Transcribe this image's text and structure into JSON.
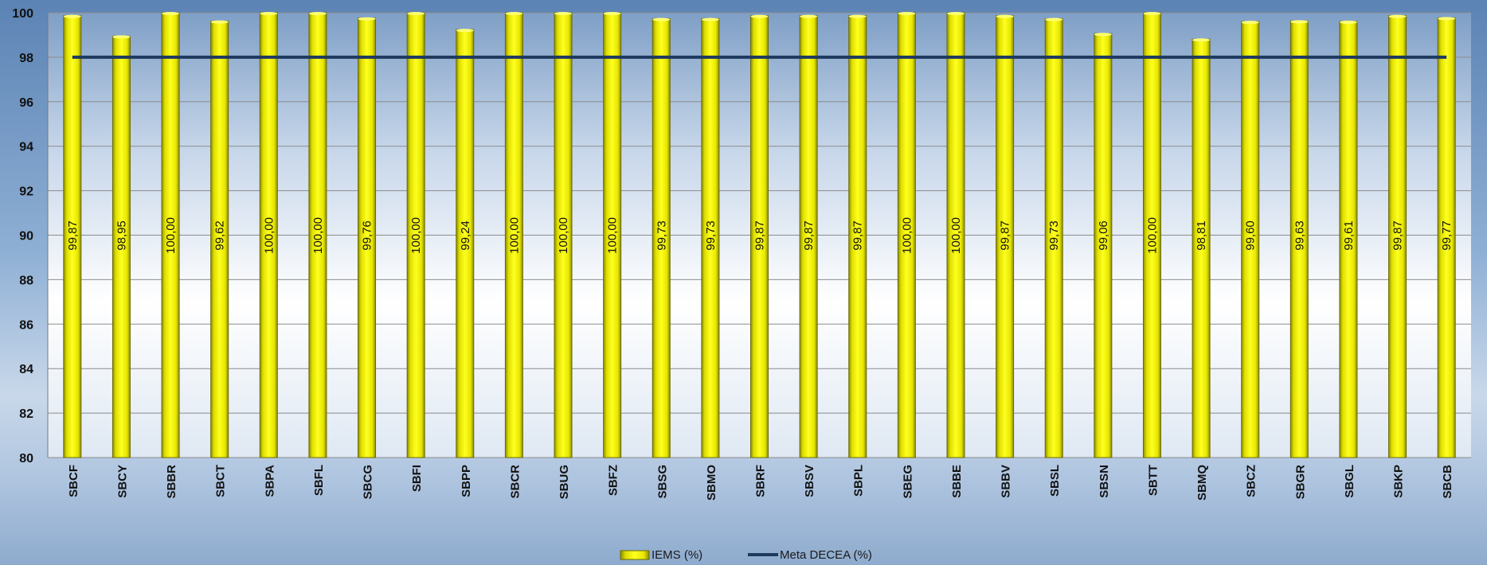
{
  "chart_data": {
    "type": "bar",
    "categories": [
      "SBCF",
      "SBCY",
      "SBBR",
      "SBCT",
      "SBPA",
      "SBFL",
      "SBCG",
      "SBFI",
      "SBPP",
      "SBCR",
      "SBUG",
      "SBFZ",
      "SBSG",
      "SBMO",
      "SBRF",
      "SBSV",
      "SBPL",
      "SBEG",
      "SBBE",
      "SBBV",
      "SBSL",
      "SBSN",
      "SBTT",
      "SBMQ",
      "SBCZ",
      "SBGR",
      "SBGL",
      "SBKP",
      "SBCB"
    ],
    "series": [
      {
        "name": "IEMS (%)",
        "type": "bar",
        "color": "#ffff00",
        "values": [
          99.87,
          98.95,
          100.0,
          99.62,
          100.0,
          100.0,
          99.76,
          100.0,
          99.24,
          100.0,
          100.0,
          100.0,
          99.73,
          99.73,
          99.87,
          99.87,
          99.87,
          100.0,
          100.0,
          99.87,
          99.73,
          99.06,
          100.0,
          98.81,
          99.6,
          99.63,
          99.61,
          99.87,
          99.77
        ],
        "labels": [
          "99,87",
          "98,95",
          "100,00",
          "99,62",
          "100,00",
          "100,00",
          "99,76",
          "100,00",
          "99,24",
          "100,00",
          "100,00",
          "100,00",
          "99,73",
          "99,73",
          "99,87",
          "99,87",
          "99,87",
          "100,00",
          "100,00",
          "99,87",
          "99,73",
          "99,06",
          "100,00",
          "98,81",
          "99,60",
          "99,63",
          "99,61",
          "99,87",
          "99,77"
        ]
      },
      {
        "name": "Meta DECEA (%)",
        "type": "line",
        "color": "#1f3a5f",
        "values": [
          98,
          98,
          98,
          98,
          98,
          98,
          98,
          98,
          98,
          98,
          98,
          98,
          98,
          98,
          98,
          98,
          98,
          98,
          98,
          98,
          98,
          98,
          98,
          98,
          98,
          98,
          98,
          98,
          98
        ]
      }
    ],
    "ylim": [
      80,
      100
    ],
    "yticks": [
      80,
      82,
      84,
      86,
      88,
      90,
      92,
      94,
      96,
      98,
      100
    ],
    "title": "",
    "xlabel": "",
    "ylabel": "",
    "grid": true,
    "legend": "bottom-center"
  }
}
